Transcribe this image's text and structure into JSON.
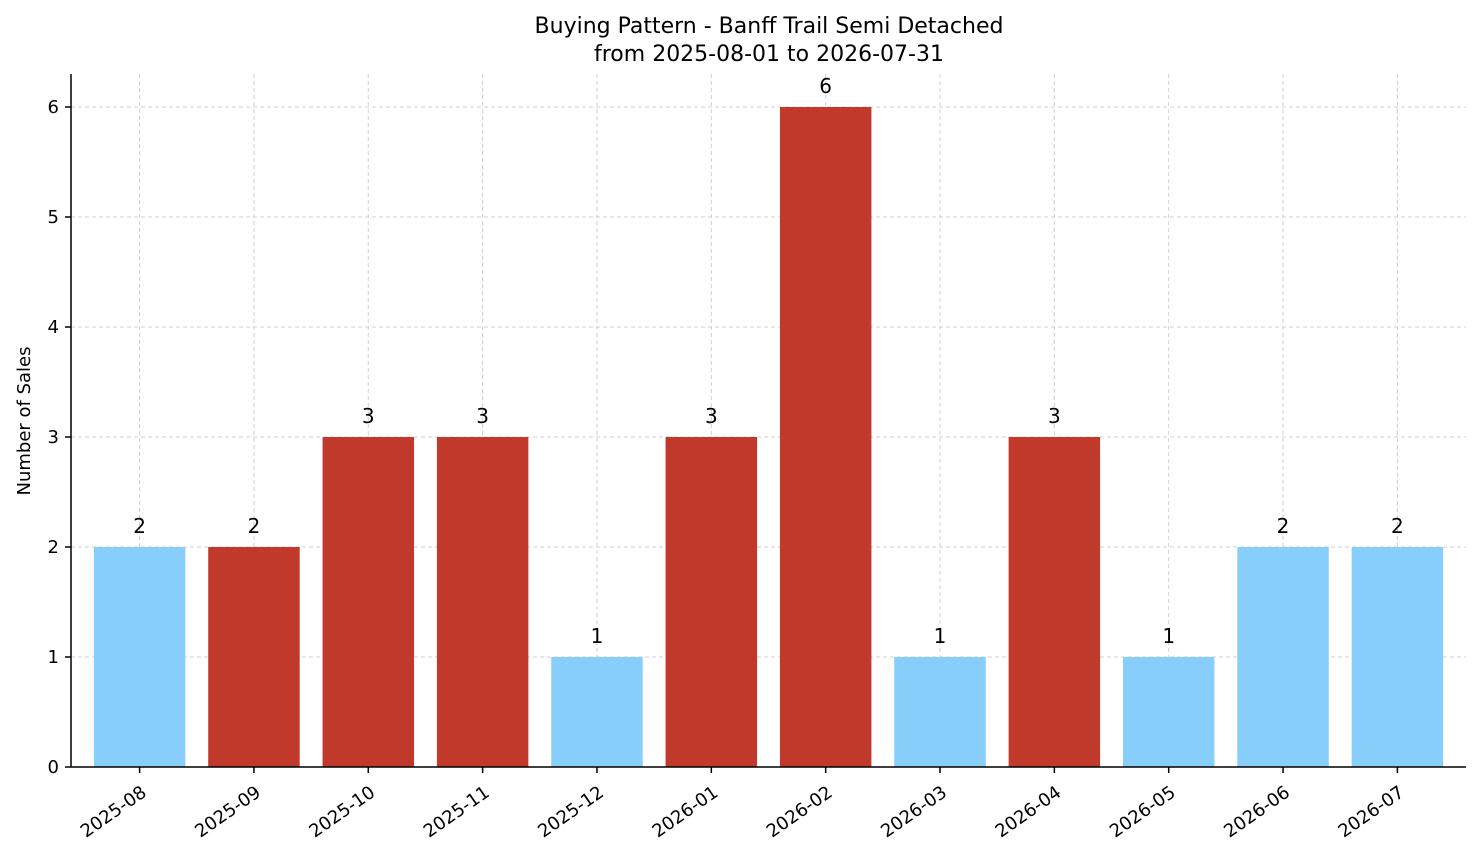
{
  "chart_data": {
    "type": "bar",
    "title": "Buying Pattern - Banff Trail Semi Detached",
    "subtitle": "from 2025-08-01 to 2026-07-31",
    "xlabel": "",
    "ylabel": "Number of Sales",
    "categories": [
      "2025-08",
      "2025-09",
      "2025-10",
      "2025-11",
      "2025-12",
      "2026-01",
      "2026-02",
      "2026-03",
      "2026-04",
      "2026-05",
      "2026-06",
      "2026-07"
    ],
    "values": [
      2,
      2,
      3,
      3,
      1,
      3,
      6,
      1,
      3,
      1,
      2,
      2
    ],
    "bar_colors": [
      "#87CEFA",
      "#C0392B",
      "#C0392B",
      "#C0392B",
      "#87CEFA",
      "#C0392B",
      "#C0392B",
      "#87CEFA",
      "#C0392B",
      "#87CEFA",
      "#87CEFA",
      "#87CEFA"
    ],
    "ylim": [
      0,
      6.3
    ],
    "yticks": [
      0,
      1,
      2,
      3,
      4,
      5,
      6
    ],
    "grid": true,
    "data_labels": true
  }
}
